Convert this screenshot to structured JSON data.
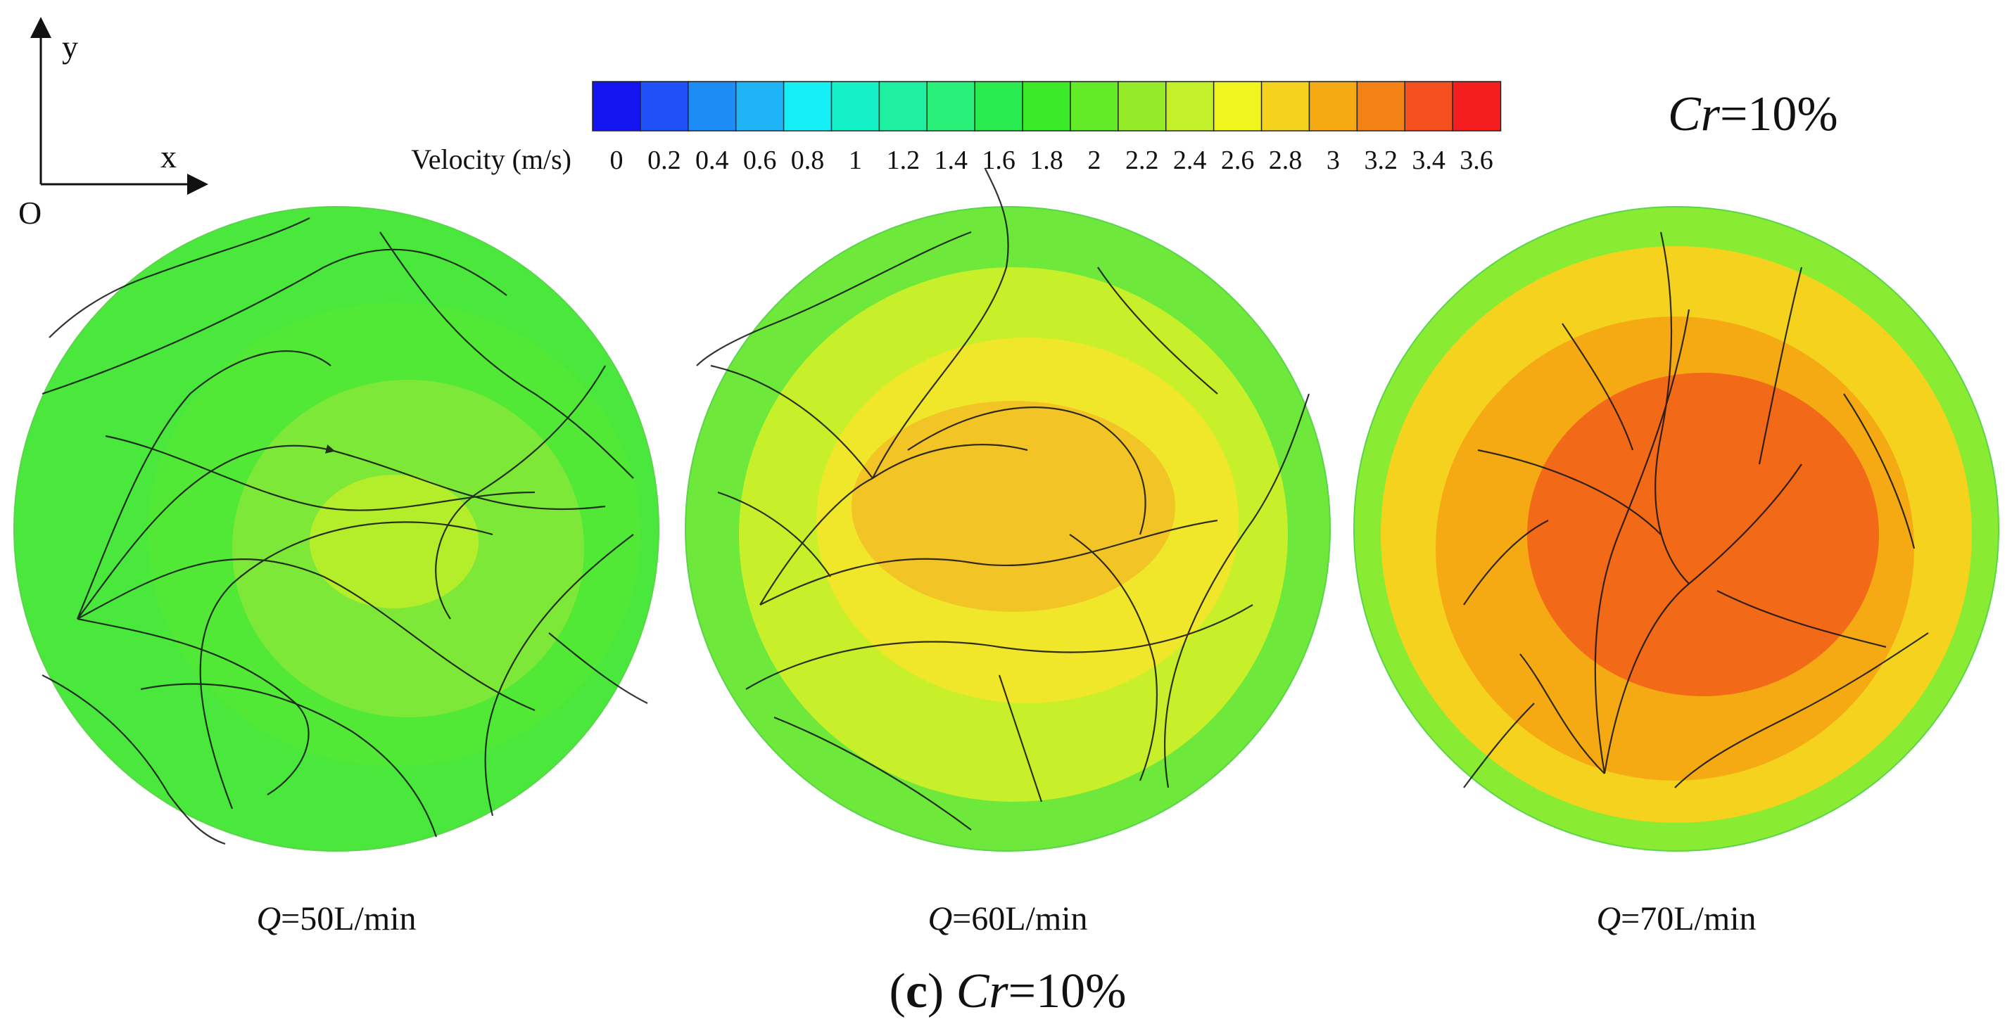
{
  "axes": {
    "x_label": "x",
    "y_label": "y",
    "origin_label": "O"
  },
  "colorbar": {
    "label": "Velocity (m/s)",
    "ticks": [
      "0",
      "0.2",
      "0.4",
      "0.6",
      "0.8",
      "1",
      "1.2",
      "1.4",
      "1.6",
      "1.8",
      "2",
      "2.2",
      "2.4",
      "2.6",
      "2.8",
      "3",
      "3.2",
      "3.4",
      "3.6"
    ],
    "colors": [
      "#1414f0",
      "#1e50f5",
      "#1e8cf5",
      "#1eb4f5",
      "#14f0f5",
      "#14f0c8",
      "#1ef0a0",
      "#28f078",
      "#28eb50",
      "#3ceb28",
      "#64eb28",
      "#96eb28",
      "#c3f028",
      "#f0f51e",
      "#f5d21e",
      "#f5aa14",
      "#f58214",
      "#f5501e",
      "#f51e1e"
    ]
  },
  "header": {
    "cr_italic": "Cr",
    "cr_value": "=10%"
  },
  "panels": [
    {
      "q_italic": "Q",
      "q_value": "=50L/min",
      "fills": [
        "#4ae83c",
        "#52e836",
        "#7ee838",
        "#b4ee2a"
      ]
    },
    {
      "q_italic": "Q",
      "q_value": "=60L/min",
      "fills": [
        "#6ee83a",
        "#c8f02a",
        "#f0e62a",
        "#f3c425"
      ]
    },
    {
      "q_italic": "Q",
      "q_value": "=70L/min",
      "fills": [
        "#8aec32",
        "#f5d21e",
        "#f5aa14",
        "#f26a18"
      ]
    }
  ],
  "caption": {
    "open": "(",
    "letter": "c",
    "close": ")",
    "cr_italic": "Cr",
    "cr_value": "=10%"
  }
}
